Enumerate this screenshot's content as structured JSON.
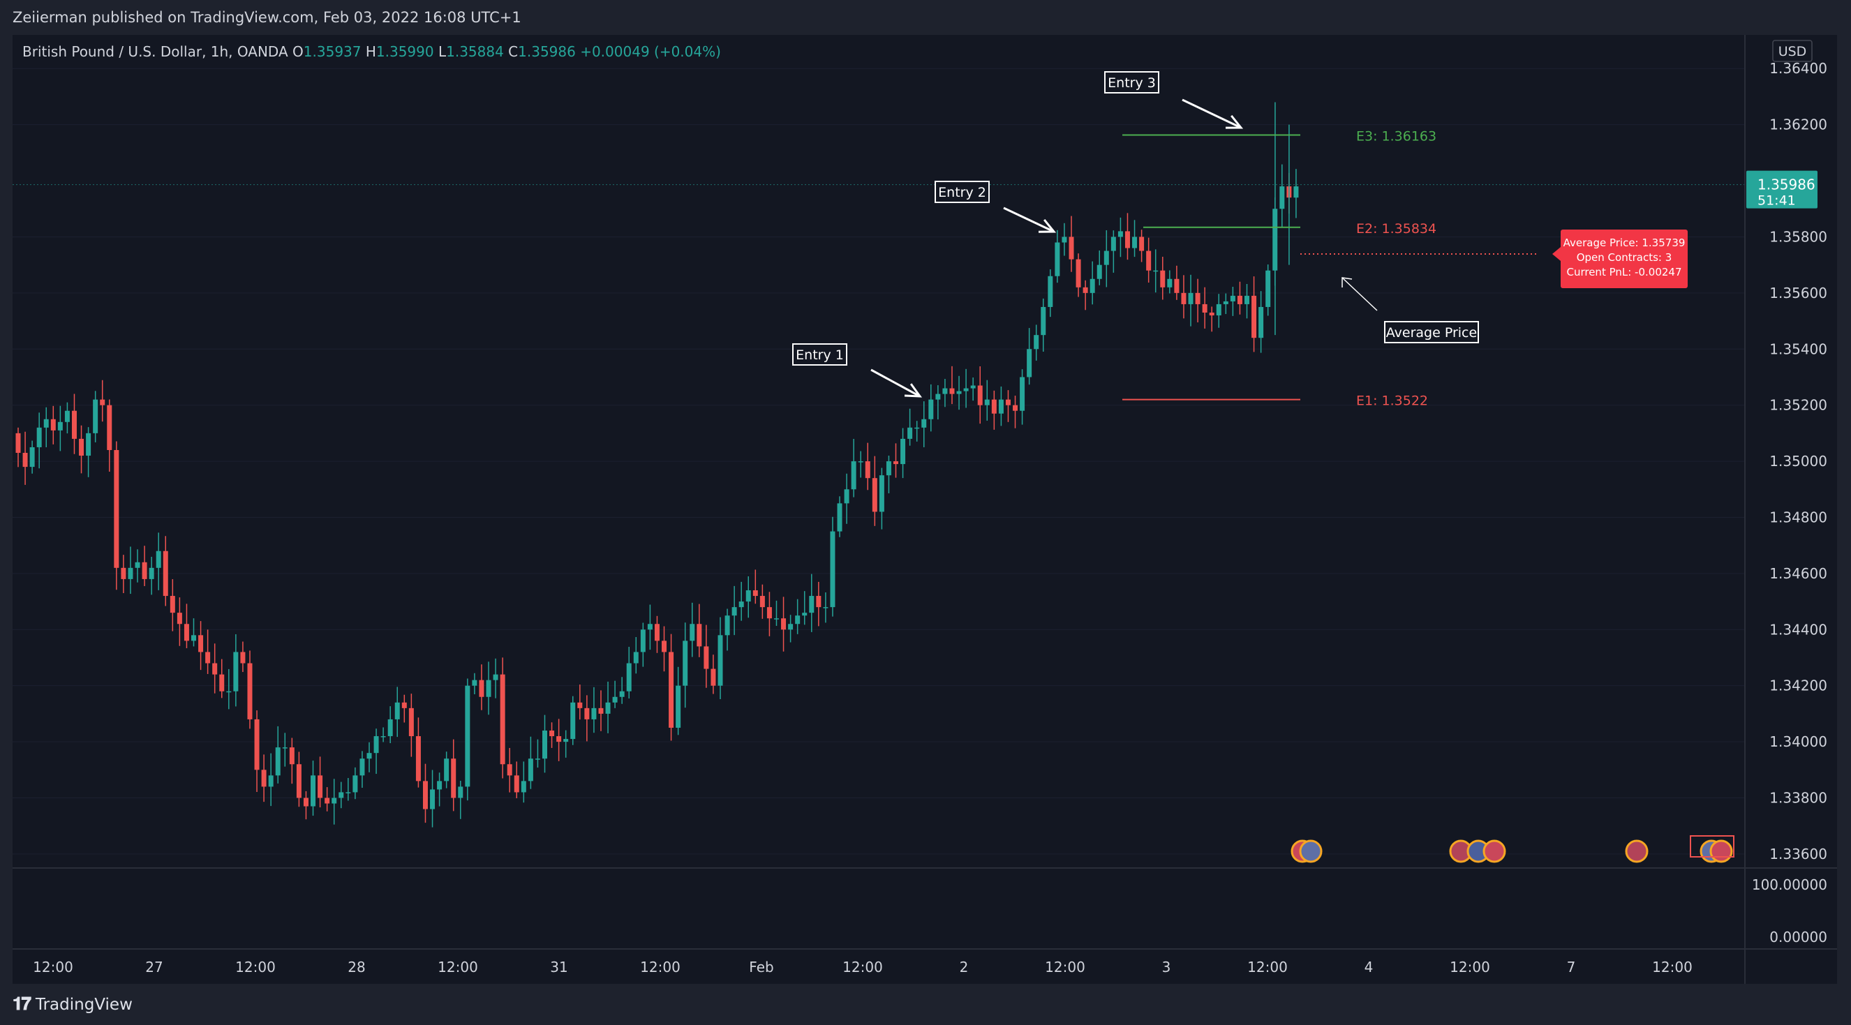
{
  "header": {
    "published": "Zeiierman published on TradingView.com, Feb 03, 2022 16:08 UTC+1"
  },
  "footer": {
    "brand": "TradingView"
  },
  "legend": {
    "symbol": "British Pound / U.S. Dollar, 1h, OANDA",
    "o_label": "O",
    "o": "1.35937",
    "h_label": "H",
    "h": "1.35990",
    "l_label": "L",
    "l": "1.35884",
    "c_label": "C",
    "c": "1.35986",
    "change": "+0.00049 (+0.04%)"
  },
  "price_axis": {
    "currency": "USD",
    "current_price": "1.35986",
    "countdown": "51:41",
    "ticks": [
      "1.36400",
      "1.36200",
      "1.35800",
      "1.35600",
      "1.35400",
      "1.35200",
      "1.35000",
      "1.34800",
      "1.34600",
      "1.34400",
      "1.34200",
      "1.34000",
      "1.33800",
      "1.33600"
    ],
    "sub_ticks": [
      "100.00000",
      "0.00000"
    ]
  },
  "time_axis": [
    "12:00",
    "27",
    "12:00",
    "28",
    "12:00",
    "31",
    "12:00",
    "Feb",
    "12:00",
    "2",
    "12:00",
    "3",
    "12:00",
    "4",
    "12:00",
    "7",
    "12:00"
  ],
  "annotations": {
    "entry1": "Entry 1",
    "entry2": "Entry 2",
    "entry3": "Entry 3",
    "avg_label": "Average Price",
    "e1": "E1: 1.3522",
    "e2": "E2: 1.35834",
    "e3": "E3: 1.36163",
    "tooltip": [
      "Average Price: 1.35739",
      "Open Contracts: 3",
      "Current PnL: -0.00247"
    ]
  },
  "colors": {
    "up": "#26a69a",
    "down": "#ef5350",
    "bg": "#131722",
    "level_green": "#4caf50",
    "level_red": "#ef5350",
    "tooltip": "#f23645"
  },
  "chart_data": {
    "type": "candlestick",
    "symbol": "GBPUSD",
    "timeframe": "1h",
    "ylim": [
      1.3355,
      1.3652
    ],
    "levels": {
      "E1": 1.3522,
      "E2": 1.35834,
      "E3": 1.36163,
      "average_price": 1.35739
    },
    "last": {
      "open": 1.35937,
      "high": 1.3599,
      "low": 1.35884,
      "close": 1.35986
    },
    "closes": [
      1.3503,
      1.3498,
      1.3505,
      1.3512,
      1.3515,
      1.3511,
      1.3514,
      1.3518,
      1.3508,
      1.3502,
      1.351,
      1.3522,
      1.352,
      1.3504,
      1.3462,
      1.3458,
      1.3462,
      1.3464,
      1.3458,
      1.3462,
      1.3468,
      1.3452,
      1.3446,
      1.3442,
      1.3436,
      1.3438,
      1.3432,
      1.3428,
      1.3424,
      1.3418,
      1.3418,
      1.3432,
      1.3428,
      1.3408,
      1.339,
      1.3384,
      1.3388,
      1.3398,
      1.3398,
      1.3392,
      1.338,
      1.3377,
      1.3388,
      1.338,
      1.3378,
      1.338,
      1.3382,
      1.3382,
      1.3388,
      1.3394,
      1.3396,
      1.3402,
      1.3402,
      1.3408,
      1.3414,
      1.3412,
      1.3402,
      1.3386,
      1.3376,
      1.3383,
      1.3386,
      1.3394,
      1.338,
      1.3384,
      1.342,
      1.3422,
      1.3416,
      1.3422,
      1.3424,
      1.3392,
      1.3388,
      1.3382,
      1.3386,
      1.3394,
      1.3394,
      1.3404,
      1.3402,
      1.34,
      1.3401,
      1.3414,
      1.3412,
      1.3408,
      1.3412,
      1.341,
      1.3414,
      1.3416,
      1.3418,
      1.3428,
      1.3432,
      1.344,
      1.3442,
      1.3436,
      1.3432,
      1.3405,
      1.342,
      1.3436,
      1.3442,
      1.3434,
      1.3426,
      1.342,
      1.3438,
      1.3445,
      1.3448,
      1.345,
      1.3454,
      1.3452,
      1.3448,
      1.3444,
      1.3444,
      1.344,
      1.3442,
      1.3445,
      1.3446,
      1.3452,
      1.3448,
      1.3448,
      1.3475,
      1.3485,
      1.349,
      1.35,
      1.35,
      1.3494,
      1.3482,
      1.3495,
      1.35,
      1.3499,
      1.3508,
      1.3512,
      1.3512,
      1.3515,
      1.3522,
      1.3524,
      1.3526,
      1.3524,
      1.3525,
      1.3526,
      1.3527,
      1.352,
      1.3522,
      1.3517,
      1.3522,
      1.352,
      1.3518,
      1.353,
      1.354,
      1.3545,
      1.3555,
      1.3566,
      1.3578,
      1.358,
      1.3572,
      1.3562,
      1.356,
      1.3565,
      1.357,
      1.3575,
      1.358,
      1.3582,
      1.3576,
      1.358,
      1.3575,
      1.3568,
      1.3568,
      1.3562,
      1.3565,
      1.356,
      1.3556,
      1.356,
      1.3556,
      1.3553,
      1.3552,
      1.3556,
      1.3557,
      1.3559,
      1.3556,
      1.3559,
      1.3544,
      1.3555,
      1.3568,
      1.359,
      1.3598,
      1.3594,
      1.3598
    ]
  }
}
